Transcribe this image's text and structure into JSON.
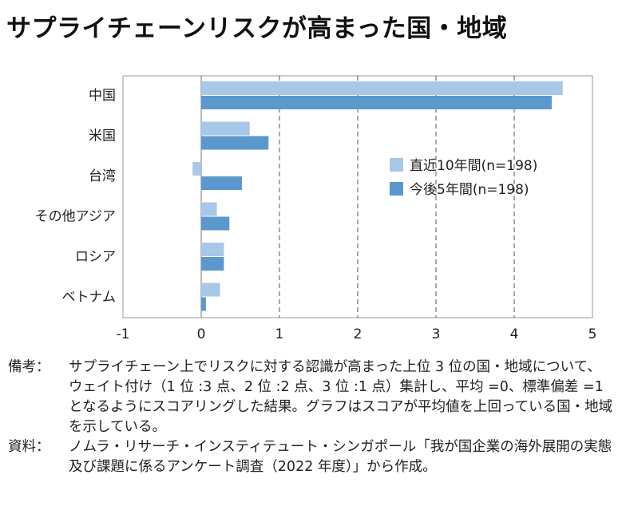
{
  "title": "サプライチェーンリスクが高まった国・地域",
  "chart_data": {
    "type": "bar",
    "orientation": "horizontal",
    "categories": [
      "中国",
      "米国",
      "台湾",
      "その他アジア",
      "ロシア",
      "ベトナム"
    ],
    "series": [
      {
        "name": "直近10年間(n=198)",
        "color": "#a7c8e6",
        "values": [
          4.62,
          0.62,
          -0.11,
          0.2,
          0.29,
          0.24
        ]
      },
      {
        "name": "今後5年間(n=198)",
        "color": "#5b98cd",
        "values": [
          4.48,
          0.86,
          0.52,
          0.36,
          0.29,
          0.06
        ]
      }
    ],
    "xlim": [
      -1,
      5
    ],
    "xticks": [
      "-1",
      "0",
      "1",
      "2",
      "3",
      "4",
      "5"
    ],
    "grid": "vertical dashed",
    "legend_position": "right-center"
  },
  "notes": [
    {
      "label": "備考：",
      "text": "サプライチェーン上でリスクに対する認識が高まった上位 3 位の国・地域について、ウェイト付け（1 位 :3 点、2 位 :2 点、3 位 :1 点）集計し、平均 =0、標準偏差 =1 となるようにスコアリングした結果。グラフはスコアが平均値を上回っている国・地域を示している。"
    },
    {
      "label": "資料：",
      "text": "ノムラ・リサーチ・インスティテュート・シンガポール「我が国企業の海外展開の実態及び課題に係るアンケート調査（2022 年度）」から作成。"
    }
  ]
}
